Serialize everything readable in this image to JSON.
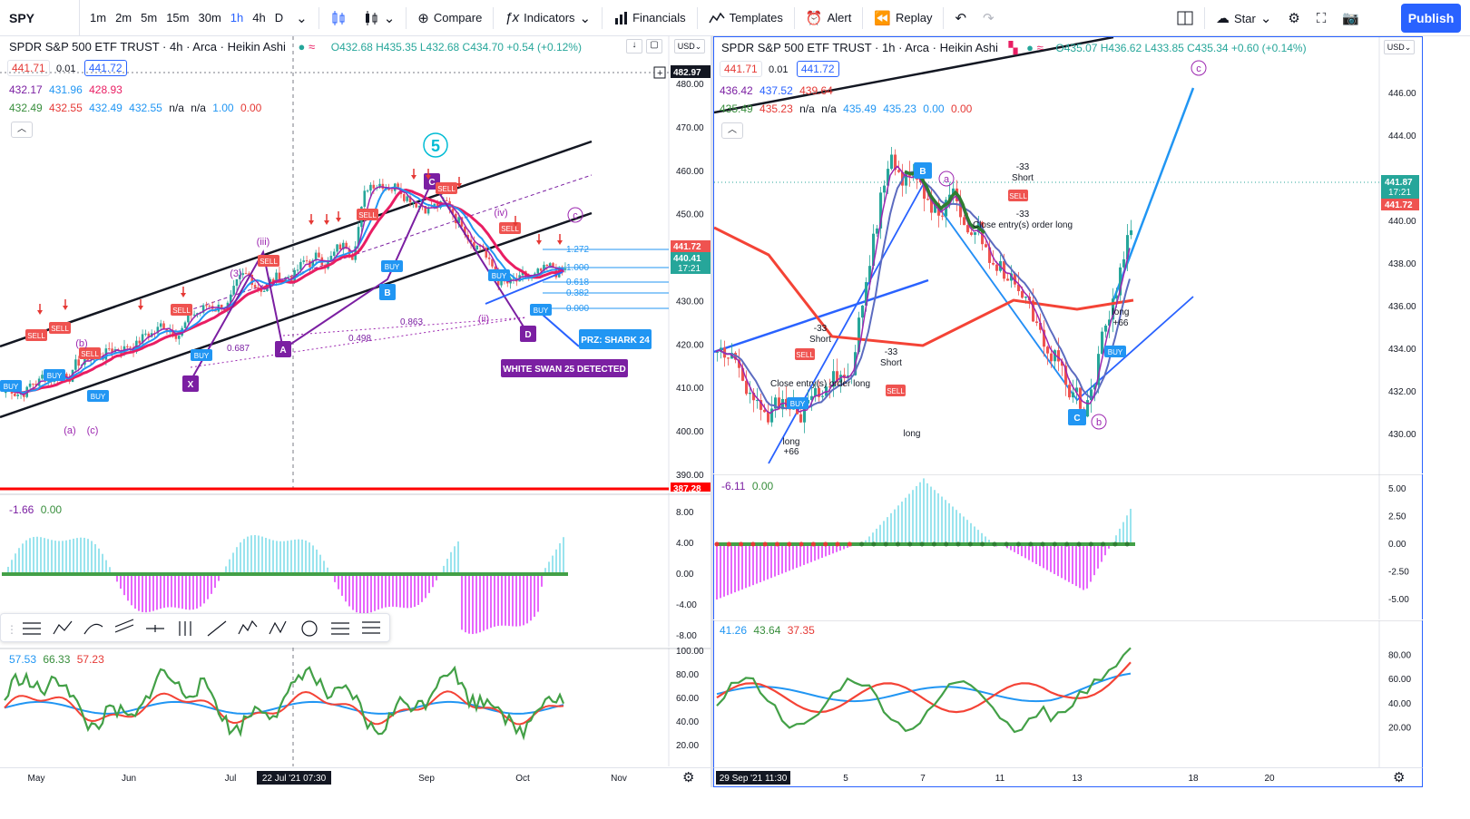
{
  "toolbar": {
    "symbol": "SPY",
    "intervals": [
      "1m",
      "2m",
      "5m",
      "15m",
      "30m",
      "1h",
      "4h",
      "D"
    ],
    "active_interval": "1h",
    "compare_label": "Compare",
    "indicators_label": "Indicators",
    "financials_label": "Financials",
    "templates_label": "Templates",
    "alert_label": "Alert",
    "replay_label": "Replay",
    "layout_name": "Star",
    "publish_label": "Publish"
  },
  "left": {
    "title": "SPDR S&P 500 ETF TRUST · 4h · Arca · Heikin Ashi",
    "ohlc": "O432.68 H435.35 L432.68 C434.70 +0.54 (+0.12%)",
    "sell_price": "441.71",
    "spread": "0.01",
    "buy_price": "441.72",
    "ind1": [
      "432.17",
      "431.96",
      "428.93"
    ],
    "ind2": [
      "432.49",
      "432.55",
      "432.49",
      "432.55",
      "n/a",
      "n/a",
      "1.00",
      "0.00"
    ],
    "currency": "USD",
    "price_axis": [
      "480.00",
      "470.00",
      "460.00",
      "450.00",
      "440.00",
      "430.00",
      "420.00",
      "410.00",
      "400.00",
      "390.00"
    ],
    "tag_top": "482.97",
    "tag_close": "441.72",
    "tag_last": "440.41",
    "tag_time": "17:21",
    "tag_low": "387.28",
    "osc_legend": [
      "-1.66",
      "0.00"
    ],
    "osc_axis": [
      "8.00",
      "4.00",
      "0.00",
      "-4.00",
      "-8.00"
    ],
    "rsi_legend": [
      "57.53",
      "66.33",
      "57.23"
    ],
    "rsi_axis": [
      "100.00",
      "80.00",
      "60.00",
      "40.00",
      "20.00"
    ],
    "dates": [
      "May",
      "Jun",
      "Jul",
      "Sep",
      "Oct",
      "Nov"
    ],
    "crosshair_date": "22 Jul '21  07:30",
    "fib_levels": [
      "1.272",
      "1.000",
      "0.618",
      "0.382",
      "0.000"
    ],
    "fib_extra": [
      "0.863",
      "0.687",
      "0.498"
    ],
    "wave_5": "5",
    "prz_label": "PRZ: SHARK 24",
    "swan_label": "WHITE SWAN 25 DETECTED",
    "pattern_points": [
      "X",
      "A",
      "B",
      "C",
      "D"
    ],
    "sell_label": "SELL",
    "buy_label": "BUY"
  },
  "right": {
    "title": "SPDR S&P 500 ETF TRUST · 1h · Arca · Heikin Ashi",
    "ohlc": "O435.07 H436.62 L433.85 C435.34 +0.60 (+0.14%)",
    "sell_price": "441.71",
    "spread": "0.01",
    "buy_price": "441.72",
    "ind1": [
      "436.42",
      "437.52",
      "439.64"
    ],
    "ind2": [
      "435.49",
      "435.23",
      "n/a",
      "n/a",
      "435.49",
      "435.23",
      "0.00",
      "0.00"
    ],
    "currency": "USD",
    "price_axis": [
      "446.00",
      "444.00",
      "442.00",
      "440.00",
      "438.00",
      "436.00",
      "434.00",
      "432.00",
      "430.00"
    ],
    "tag_last": "441.87",
    "tag_time": "17:21",
    "tag_close": "441.72",
    "osc_legend": [
      "-6.11",
      "0.00"
    ],
    "osc_axis": [
      "5.00",
      "2.50",
      "0.00",
      "-2.50",
      "-5.00"
    ],
    "rsi_legend": [
      "41.26",
      "43.64",
      "37.35"
    ],
    "rsi_axis": [
      "80.00",
      "60.00",
      "40.00",
      "20.00"
    ],
    "dates": [
      "5",
      "7",
      "11",
      "13",
      "18",
      "20"
    ],
    "crosshair_date": "29 Sep '21  11:30",
    "point_b": "B",
    "point_c": "C",
    "wave_a": "a",
    "wave_b": "b",
    "wave_c": "c",
    "short_label": "Short",
    "short_val": "-33",
    "close_entry": "Close entry(s) order long",
    "long_label": "long",
    "long_val": "+66",
    "buy_label": "BUY",
    "sell_label": "SELL"
  },
  "colors": {
    "up": "#26a69a",
    "down": "#ef5350",
    "accent": "#2962ff",
    "pattern": "#7b1fa2",
    "osc_pos": "#80deea",
    "osc_neg": "#e040fb",
    "rsi_green": "#43a047",
    "rsi_red": "#f44336",
    "rsi_blue": "#2196f3"
  }
}
